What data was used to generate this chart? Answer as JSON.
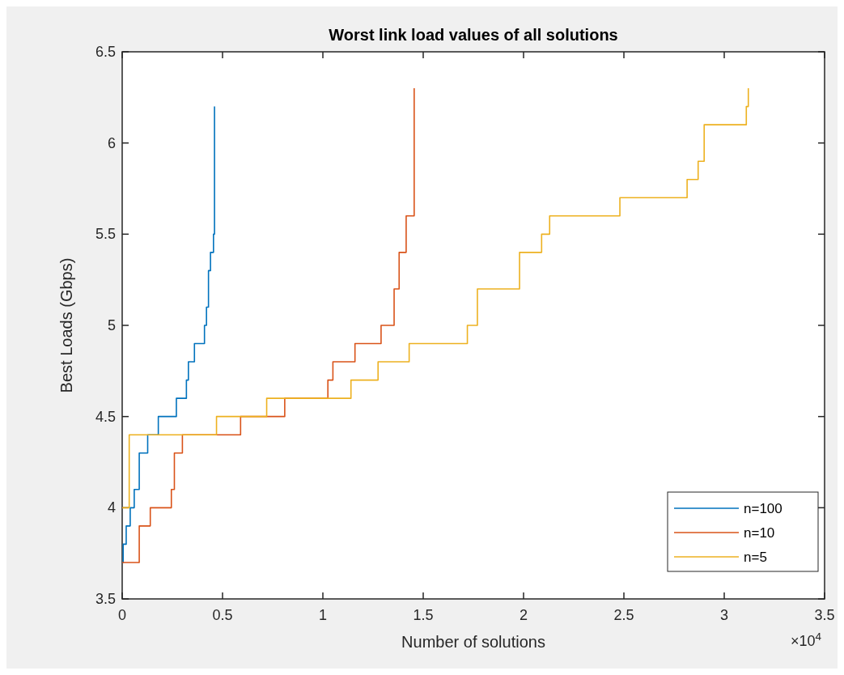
{
  "chart_data": {
    "type": "step",
    "title": "Worst link load values of all solutions",
    "xlabel": "Number of solutions",
    "ylabel": "Best Loads (Gbps)",
    "annotations": [
      "×10$^{4}$"
    ],
    "xlim": [
      0,
      3.5
    ],
    "xticks": [
      0,
      0.5,
      1,
      1.5,
      2,
      2.5,
      3,
      3.5
    ],
    "ylim": [
      3.5,
      6.5
    ],
    "yticks": [
      3.5,
      4,
      4.5,
      5,
      5.5,
      6,
      6.5
    ],
    "grid": false,
    "legend": "bottom right",
    "line_style": "solid",
    "marker": "none",
    "series": [
      {
        "name": "n=100",
        "color": "#0072bd",
        "x": [
          0,
          0.005,
          0.02,
          0.04,
          0.06,
          0.085,
          0.127,
          0.18,
          0.27,
          0.32,
          0.33,
          0.36,
          0.41,
          0.42,
          0.43,
          0.44,
          0.455,
          0.46
        ],
        "values": [
          3.7,
          3.8,
          3.9,
          4.0,
          4.1,
          4.3,
          4.4,
          4.5,
          4.6,
          4.7,
          4.8,
          4.9,
          5.0,
          5.1,
          5.3,
          5.4,
          5.5,
          6.2
        ]
      },
      {
        "name": "n=10",
        "color": "#d95319",
        "x": [
          0,
          0.085,
          0.14,
          0.245,
          0.26,
          0.3,
          0.59,
          0.81,
          1.025,
          1.05,
          1.16,
          1.29,
          1.355,
          1.38,
          1.415,
          1.455
        ],
        "values": [
          3.7,
          3.9,
          4.0,
          4.1,
          4.3,
          4.4,
          4.5,
          4.6,
          4.7,
          4.8,
          4.9,
          5.0,
          5.2,
          5.4,
          5.6,
          6.3
        ]
      },
      {
        "name": "n=5",
        "color": "#edb120",
        "x": [
          0,
          0.035,
          0.47,
          0.72,
          1.14,
          1.275,
          1.43,
          1.72,
          1.77,
          1.98,
          2.09,
          2.13,
          2.48,
          2.815,
          2.87,
          2.9,
          3.11,
          3.12
        ],
        "values": [
          4.0,
          4.4,
          4.5,
          4.6,
          4.7,
          4.8,
          4.9,
          5.0,
          5.2,
          5.4,
          5.5,
          5.6,
          5.7,
          5.8,
          5.9,
          6.1,
          6.2,
          6.3
        ]
      }
    ]
  }
}
